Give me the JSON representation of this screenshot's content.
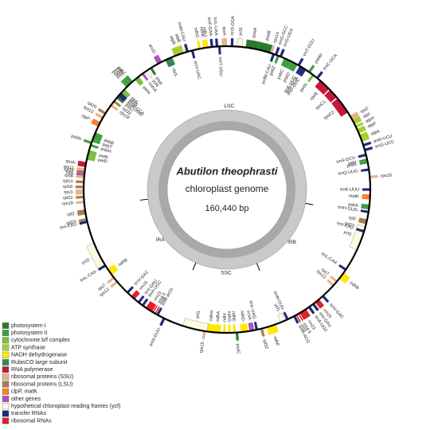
{
  "center": {
    "species": "Abutilon theophrasti",
    "subtitle": "chloroplast genome",
    "size": "160,440 bp"
  },
  "regions": [
    "LSC",
    "IRB",
    "SSC",
    "IRA"
  ],
  "legend": [
    {
      "label": "photosystem I",
      "color": "#2b7a2b",
      "genes": [
        "psaA",
        "psaB",
        "psaI",
        "psaJ",
        "psaC"
      ]
    },
    {
      "label": "photosystem II",
      "color": "#3f9f3f",
      "genes": [
        "psbA",
        "psbK",
        "psbI",
        "psbM",
        "psbZ",
        "psbC",
        "psbD",
        "psbJ",
        "psbL",
        "psbF",
        "psbE",
        "psbB",
        "psbT",
        "psbN",
        "psbH"
      ]
    },
    {
      "label": "cytochrome b/f complex",
      "color": "#7cbf3c",
      "genes": [
        "petN",
        "petA",
        "petL",
        "petG",
        "petB",
        "petD"
      ]
    },
    {
      "label": "ATP synthase",
      "color": "#a9cc33",
      "genes": [
        "atpA",
        "atpF",
        "atpH",
        "atpI",
        "atpE",
        "atpB"
      ]
    },
    {
      "label": "NADH dehydrogenase",
      "color": "#ffe800",
      "genes": [
        "ndhJ",
        "ndhK",
        "ndhC",
        "ndhB",
        "ndhF",
        "ndhD",
        "ndhE",
        "ndhG",
        "ndhI",
        "ndhA",
        "ndhH",
        "ndhB"
      ]
    },
    {
      "label": "RubisCO large subunit",
      "color": "#2e8b57",
      "genes": [
        "rbcL"
      ]
    },
    {
      "label": "RNA polymerase",
      "color": "#c8173a",
      "genes": [
        "rpoB",
        "rpoC1",
        "rpoC2",
        "rpoA"
      ]
    },
    {
      "label": "ribosomal proteins (SSU)",
      "color": "#e6b489",
      "genes": [
        "rps16",
        "rps2",
        "rps14",
        "rps4",
        "rps18",
        "rps12",
        "rps11",
        "rps8",
        "rps3",
        "rps19",
        "rps7",
        "rps12",
        "rps15",
        "rps12",
        "rps7"
      ]
    },
    {
      "label": "ribosomal proteins (LSU)",
      "color": "#a87d4f",
      "genes": [
        "rpl33",
        "rpl20",
        "rpl36",
        "rpl14",
        "rpl16",
        "rpl22",
        "rpl2",
        "rpl23",
        "rpl2",
        "rpl23",
        "rpl32"
      ]
    },
    {
      "label": "clpP, matK",
      "color": "#ff7f2a",
      "genes": [
        "matK",
        "clpP"
      ]
    },
    {
      "label": "other genes",
      "color": "#b04fbf",
      "genes": [
        "accD",
        "cemA",
        "ccsA",
        "infA"
      ]
    },
    {
      "label": "hypothetical chloroplast reading frames (ycf)",
      "color": "#fffbe2",
      "genes": [
        "ycf3",
        "ycf4",
        "ycf2",
        "ycf1",
        "ycf2",
        "ycf1"
      ]
    },
    {
      "label": "transfer RNAs",
      "color": "#1e2a7a",
      "genes": [
        "trnH-GUG",
        "trnK-UUU",
        "trnQ-UUG",
        "trnS-GCU",
        "trnG-UCC",
        "trnR-UCU",
        "trnC-GCA",
        "trnD-GUC",
        "trnY-GUA",
        "trnE-UUC",
        "trnT-GGU",
        "trnS-UGA",
        "trnG-GCC",
        "trnfM-CAU",
        "trnS-GGA",
        "trnT-UGU",
        "trnL-UAA",
        "trnF-GAA",
        "trnV-UAC",
        "trnM-CAU",
        "trnW-CCA",
        "trnP-UGG",
        "trnI-CAU",
        "trnL-CAA",
        "trnV-GAC",
        "trnI-GAU",
        "trnA-UGC",
        "trnR-ACG",
        "trnN-GUU",
        "trnL-UAG",
        "trnN-GUU",
        "trnR-ACG",
        "trnA-UGC",
        "trnI-GAU",
        "trnV-GAC",
        "trnL-CAA",
        "trnI-CAU"
      ]
    },
    {
      "label": "ribosomal RNAs",
      "color": "#e0202a",
      "genes": [
        "rrn16",
        "rrn23",
        "rrn4.5",
        "rrn5",
        "rrn5",
        "rrn4.5",
        "rrn23",
        "rrn16"
      ]
    }
  ]
}
